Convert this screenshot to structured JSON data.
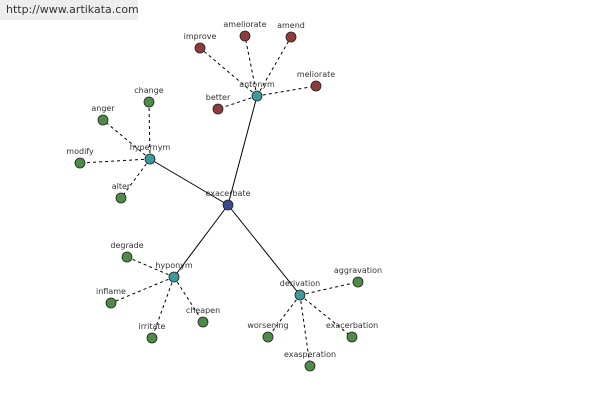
{
  "watermark": "http://www.artikata.com",
  "center": {
    "label": "exacerbate"
  },
  "groups": [
    {
      "label": "antonym",
      "leaves": [
        "improve",
        "ameliorate",
        "amend",
        "meliorate",
        "better"
      ]
    },
    {
      "label": "hypernym",
      "leaves": [
        "change",
        "anger",
        "modify",
        "alter"
      ]
    },
    {
      "label": "hyponym",
      "leaves": [
        "degrade",
        "inflame",
        "irritate",
        "cheapen"
      ]
    },
    {
      "label": "derivation",
      "leaves": [
        "aggravation",
        "worsening",
        "exacerbation",
        "exasperation"
      ]
    }
  ]
}
